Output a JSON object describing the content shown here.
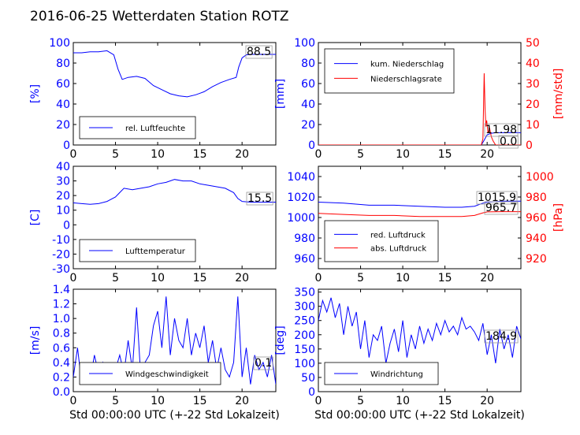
{
  "title": "2016-06-25 Wetterdaten Station ROTZ",
  "colors": {
    "blue": "#0000ff",
    "red": "#ff0000",
    "black": "#000000"
  },
  "chart_data": [
    {
      "id": "humidity",
      "type": "line",
      "xlabel": "",
      "ylabel": "[%]",
      "xlim": [
        0,
        24
      ],
      "ylim": [
        0,
        100
      ],
      "xticks": [
        "0",
        "5",
        "10",
        "15",
        "20"
      ],
      "yticks": [
        "0",
        "20",
        "40",
        "60",
        "80",
        "100"
      ],
      "legend": {
        "position": "lower-left",
        "entries": [
          "rel. Luftfeuchte"
        ]
      },
      "annotation": "88.5",
      "series": [
        {
          "name": "rel. Luftfeuchte",
          "axis": "left",
          "color": "#0000ff",
          "x": [
            0,
            1,
            2,
            3,
            4,
            4.8,
            5.3,
            5.8,
            6.5,
            7.5,
            8.5,
            9.5,
            10.5,
            11.5,
            12.5,
            13.5,
            14.5,
            15.5,
            16.5,
            17.5,
            18.5,
            19.3,
            19.6,
            20,
            20.5,
            21,
            22,
            23,
            24
          ],
          "y": [
            90,
            90,
            91,
            91,
            92,
            88,
            74,
            64,
            66,
            67,
            65,
            58,
            54,
            50,
            48,
            47,
            49,
            52,
            57,
            61,
            64,
            66,
            76,
            85,
            88,
            88.5,
            88.5,
            88.5,
            88.5
          ]
        }
      ]
    },
    {
      "id": "precipitation",
      "type": "line",
      "xlabel": "",
      "ylabel": "[mm]",
      "ylabel_right": "[mm/std]",
      "xlim": [
        0,
        24
      ],
      "ylim": [
        0,
        100
      ],
      "ylim_right": [
        0,
        50
      ],
      "xticks": [
        "0",
        "5",
        "10",
        "15",
        "20"
      ],
      "yticks": [
        "0",
        "20",
        "40",
        "60",
        "80",
        "100"
      ],
      "yticks_right": [
        "0",
        "10",
        "20",
        "30",
        "40",
        "50"
      ],
      "legend": {
        "position": "upper-left",
        "entries": [
          "kum. Niederschlag",
          "Niederschlagsrate"
        ]
      },
      "annotations": [
        "11.98",
        "0.0"
      ],
      "series": [
        {
          "name": "kum. Niederschlag",
          "axis": "left",
          "color": "#0000ff",
          "x": [
            0,
            19.3,
            19.6,
            20,
            20.5,
            21,
            22,
            23,
            24
          ],
          "y": [
            0,
            0,
            4,
            10,
            11.5,
            11.98,
            11.98,
            11.98,
            11.98
          ]
        },
        {
          "name": "Niederschlagsrate",
          "axis": "right",
          "color": "#ff0000",
          "x": [
            0,
            19.3,
            19.5,
            19.65,
            19.75,
            19.85,
            19.95,
            20.1,
            20.3,
            20.5,
            20.7,
            21,
            22,
            24
          ],
          "y": [
            0,
            0,
            3,
            35,
            18,
            9,
            12,
            6,
            8,
            4,
            2,
            0,
            0,
            0
          ]
        }
      ]
    },
    {
      "id": "temperature",
      "type": "line",
      "xlabel": "",
      "ylabel": "[C]",
      "xlim": [
        0,
        24
      ],
      "ylim": [
        -30,
        40
      ],
      "xticks": [
        "0",
        "5",
        "10",
        "15",
        "20"
      ],
      "yticks": [
        "-30",
        "-20",
        "-10",
        "0",
        "10",
        "20",
        "30",
        "40"
      ],
      "legend": {
        "position": "lower-left",
        "entries": [
          "Lufttemperatur"
        ]
      },
      "annotation": "15.5",
      "series": [
        {
          "name": "Lufttemperatur",
          "axis": "left",
          "color": "#0000ff",
          "x": [
            0,
            1,
            2,
            3,
            4,
            5,
            5.5,
            6,
            7,
            8,
            9,
            10,
            11,
            12,
            13,
            14,
            15,
            16,
            17,
            18,
            19,
            19.5,
            20,
            21,
            22,
            23,
            24
          ],
          "y": [
            15,
            14.5,
            14,
            14.5,
            16,
            19,
            22,
            25,
            24,
            25,
            26,
            28,
            29,
            31,
            30,
            30,
            28,
            27,
            26,
            25,
            22,
            18,
            16,
            15.5,
            15.5,
            15.5,
            15.5
          ]
        }
      ]
    },
    {
      "id": "pressure",
      "type": "line",
      "xlabel": "",
      "ylabel": "",
      "ylabel_right": "[hPa]",
      "xlim": [
        0,
        24
      ],
      "ylim": [
        950,
        1050
      ],
      "ylim_right": [
        910,
        1010
      ],
      "xticks": [
        "0",
        "5",
        "10",
        "15",
        "20"
      ],
      "yticks": [
        "960",
        "980",
        "1000",
        "1020",
        "1040"
      ],
      "yticks_right": [
        "920",
        "940",
        "960",
        "980",
        "1000"
      ],
      "legend": {
        "position": "lower-left",
        "entries": [
          "red. Luftdruck",
          "abs. Luftdruck"
        ]
      },
      "annotations": [
        "1015.9",
        "965.7"
      ],
      "series": [
        {
          "name": "red. Luftdruck",
          "axis": "left",
          "color": "#0000ff",
          "x": [
            0,
            3,
            6,
            9,
            12,
            15,
            17,
            18.5,
            19.5,
            20,
            22,
            24
          ],
          "y": [
            1015,
            1014,
            1012,
            1012,
            1011,
            1010,
            1010,
            1011,
            1014,
            1015,
            1015.9,
            1015.9
          ]
        },
        {
          "name": "abs. Luftdruck",
          "axis": "right",
          "color": "#ff0000",
          "x": [
            0,
            3,
            6,
            9,
            12,
            15,
            17,
            18.5,
            19.5,
            20,
            22,
            24
          ],
          "y": [
            964,
            963,
            962,
            962,
            961,
            961,
            961,
            962,
            964.5,
            965.5,
            965.7,
            965.7
          ]
        }
      ]
    },
    {
      "id": "wind-speed",
      "type": "line",
      "xlabel": "Std 00:00:00 UTC (+-22 Std Lokalzeit)",
      "ylabel": "[m/s]",
      "xlim": [
        0,
        24
      ],
      "ylim": [
        0,
        1.4
      ],
      "xticks": [
        "0",
        "5",
        "10",
        "15",
        "20"
      ],
      "yticks": [
        "0.0",
        "0.2",
        "0.4",
        "0.6",
        "0.8",
        "1.0",
        "1.2",
        "1.4"
      ],
      "legend": {
        "position": "lower-center",
        "entries": [
          "Windgeschwindigkeit"
        ]
      },
      "annotation": "0.1",
      "series": [
        {
          "name": "Windgeschwindigkeit",
          "axis": "left",
          "color": "#0000ff",
          "x": [
            0,
            0.5,
            1,
            1.5,
            2,
            2.5,
            3,
            3.5,
            4,
            4.5,
            5,
            5.5,
            6,
            6.5,
            7,
            7.5,
            8,
            8.5,
            9,
            9.5,
            10,
            10.5,
            11,
            11.5,
            12,
            12.5,
            13,
            13.5,
            14,
            14.5,
            15,
            15.5,
            16,
            16.5,
            17,
            17.5,
            18,
            18.5,
            19,
            19.5,
            20,
            20.5,
            21,
            21.5,
            22,
            22.5,
            23,
            23.5,
            24
          ],
          "y": [
            0.2,
            0.6,
            0.1,
            0.3,
            0.15,
            0.5,
            0.25,
            0.4,
            0.2,
            0.35,
            0.3,
            0.5,
            0.25,
            0.7,
            0.3,
            1.15,
            0.2,
            0.4,
            0.5,
            0.9,
            1.1,
            0.6,
            1.3,
            0.5,
            1.0,
            0.7,
            0.6,
            1.0,
            0.5,
            0.8,
            0.6,
            0.9,
            0.4,
            0.7,
            0.3,
            0.6,
            0.3,
            0.2,
            0.4,
            1.3,
            0.2,
            0.6,
            0.1,
            0.5,
            0.3,
            0.4,
            0.2,
            0.5,
            0.1
          ]
        }
      ]
    },
    {
      "id": "wind-direction",
      "type": "line",
      "xlabel": "Std 00:00:00 UTC (+-22 Std Lokalzeit)",
      "ylabel": "[deg]",
      "xlim": [
        0,
        24
      ],
      "ylim": [
        0,
        360
      ],
      "xticks": [
        "0",
        "5",
        "10",
        "15",
        "20"
      ],
      "yticks": [
        "0",
        "50",
        "100",
        "150",
        "200",
        "250",
        "300",
        "350"
      ],
      "legend": {
        "position": "lower-left",
        "entries": [
          "Windrichtung"
        ]
      },
      "annotation": "184.9",
      "series": [
        {
          "name": "Windrichtung",
          "axis": "left",
          "color": "#0000ff",
          "x": [
            0,
            0.5,
            1,
            1.5,
            2,
            2.5,
            3,
            3.5,
            4,
            4.5,
            5,
            5.5,
            6,
            6.5,
            7,
            7.5,
            8,
            8.5,
            9,
            9.5,
            10,
            10.5,
            11,
            11.5,
            12,
            12.5,
            13,
            13.5,
            14,
            14.5,
            15,
            15.5,
            16,
            16.5,
            17,
            17.5,
            18,
            18.5,
            19,
            19.5,
            20,
            20.5,
            21,
            21.5,
            22,
            22.5,
            23,
            23.5,
            24
          ],
          "y": [
            250,
            320,
            280,
            330,
            260,
            310,
            200,
            300,
            230,
            280,
            150,
            250,
            120,
            200,
            180,
            230,
            100,
            170,
            220,
            140,
            250,
            120,
            200,
            150,
            230,
            170,
            220,
            180,
            240,
            200,
            250,
            210,
            230,
            200,
            260,
            220,
            230,
            210,
            180,
            240,
            130,
            200,
            100,
            220,
            150,
            200,
            120,
            230,
            185
          ]
        }
      ]
    }
  ]
}
